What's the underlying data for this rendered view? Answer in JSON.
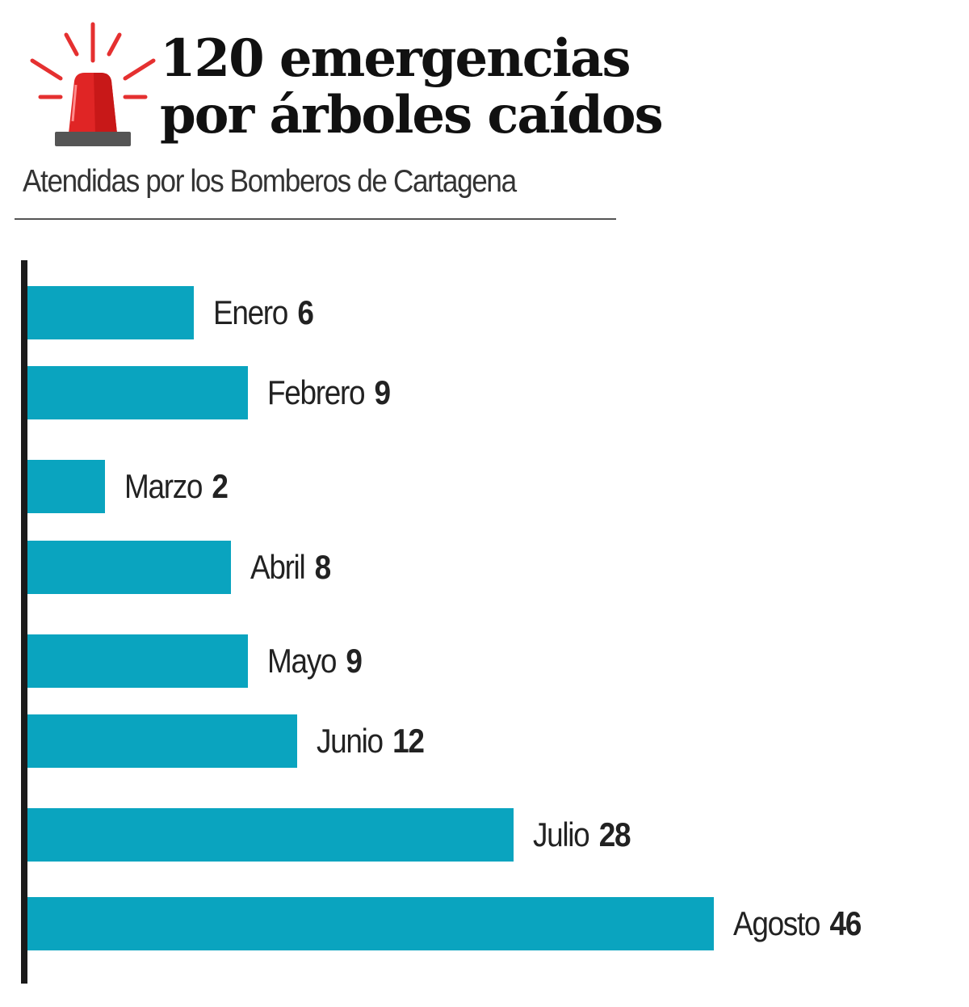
{
  "header": {
    "icon": "siren-icon",
    "title_line1": "120 emergencias",
    "title_line2": "por árboles caídos",
    "subtitle": "Atendidas por los Bomberos de Cartagena"
  },
  "colors": {
    "bar": "#0aa4bf",
    "siren": "#e02020",
    "axis": "#1a1a1a"
  },
  "chart_data": {
    "type": "bar",
    "orientation": "horizontal",
    "title": "120 emergencias por árboles caídos",
    "subtitle": "Atendidas por los Bomberos de Cartagena",
    "categories": [
      "Enero",
      "Febrero",
      "Marzo",
      "Abril",
      "Mayo",
      "Junio",
      "Julio",
      "Agosto"
    ],
    "values": [
      6,
      9,
      2,
      8,
      9,
      12,
      28,
      46
    ],
    "total": 120,
    "grid": false,
    "xlabel": "",
    "ylabel": ""
  }
}
